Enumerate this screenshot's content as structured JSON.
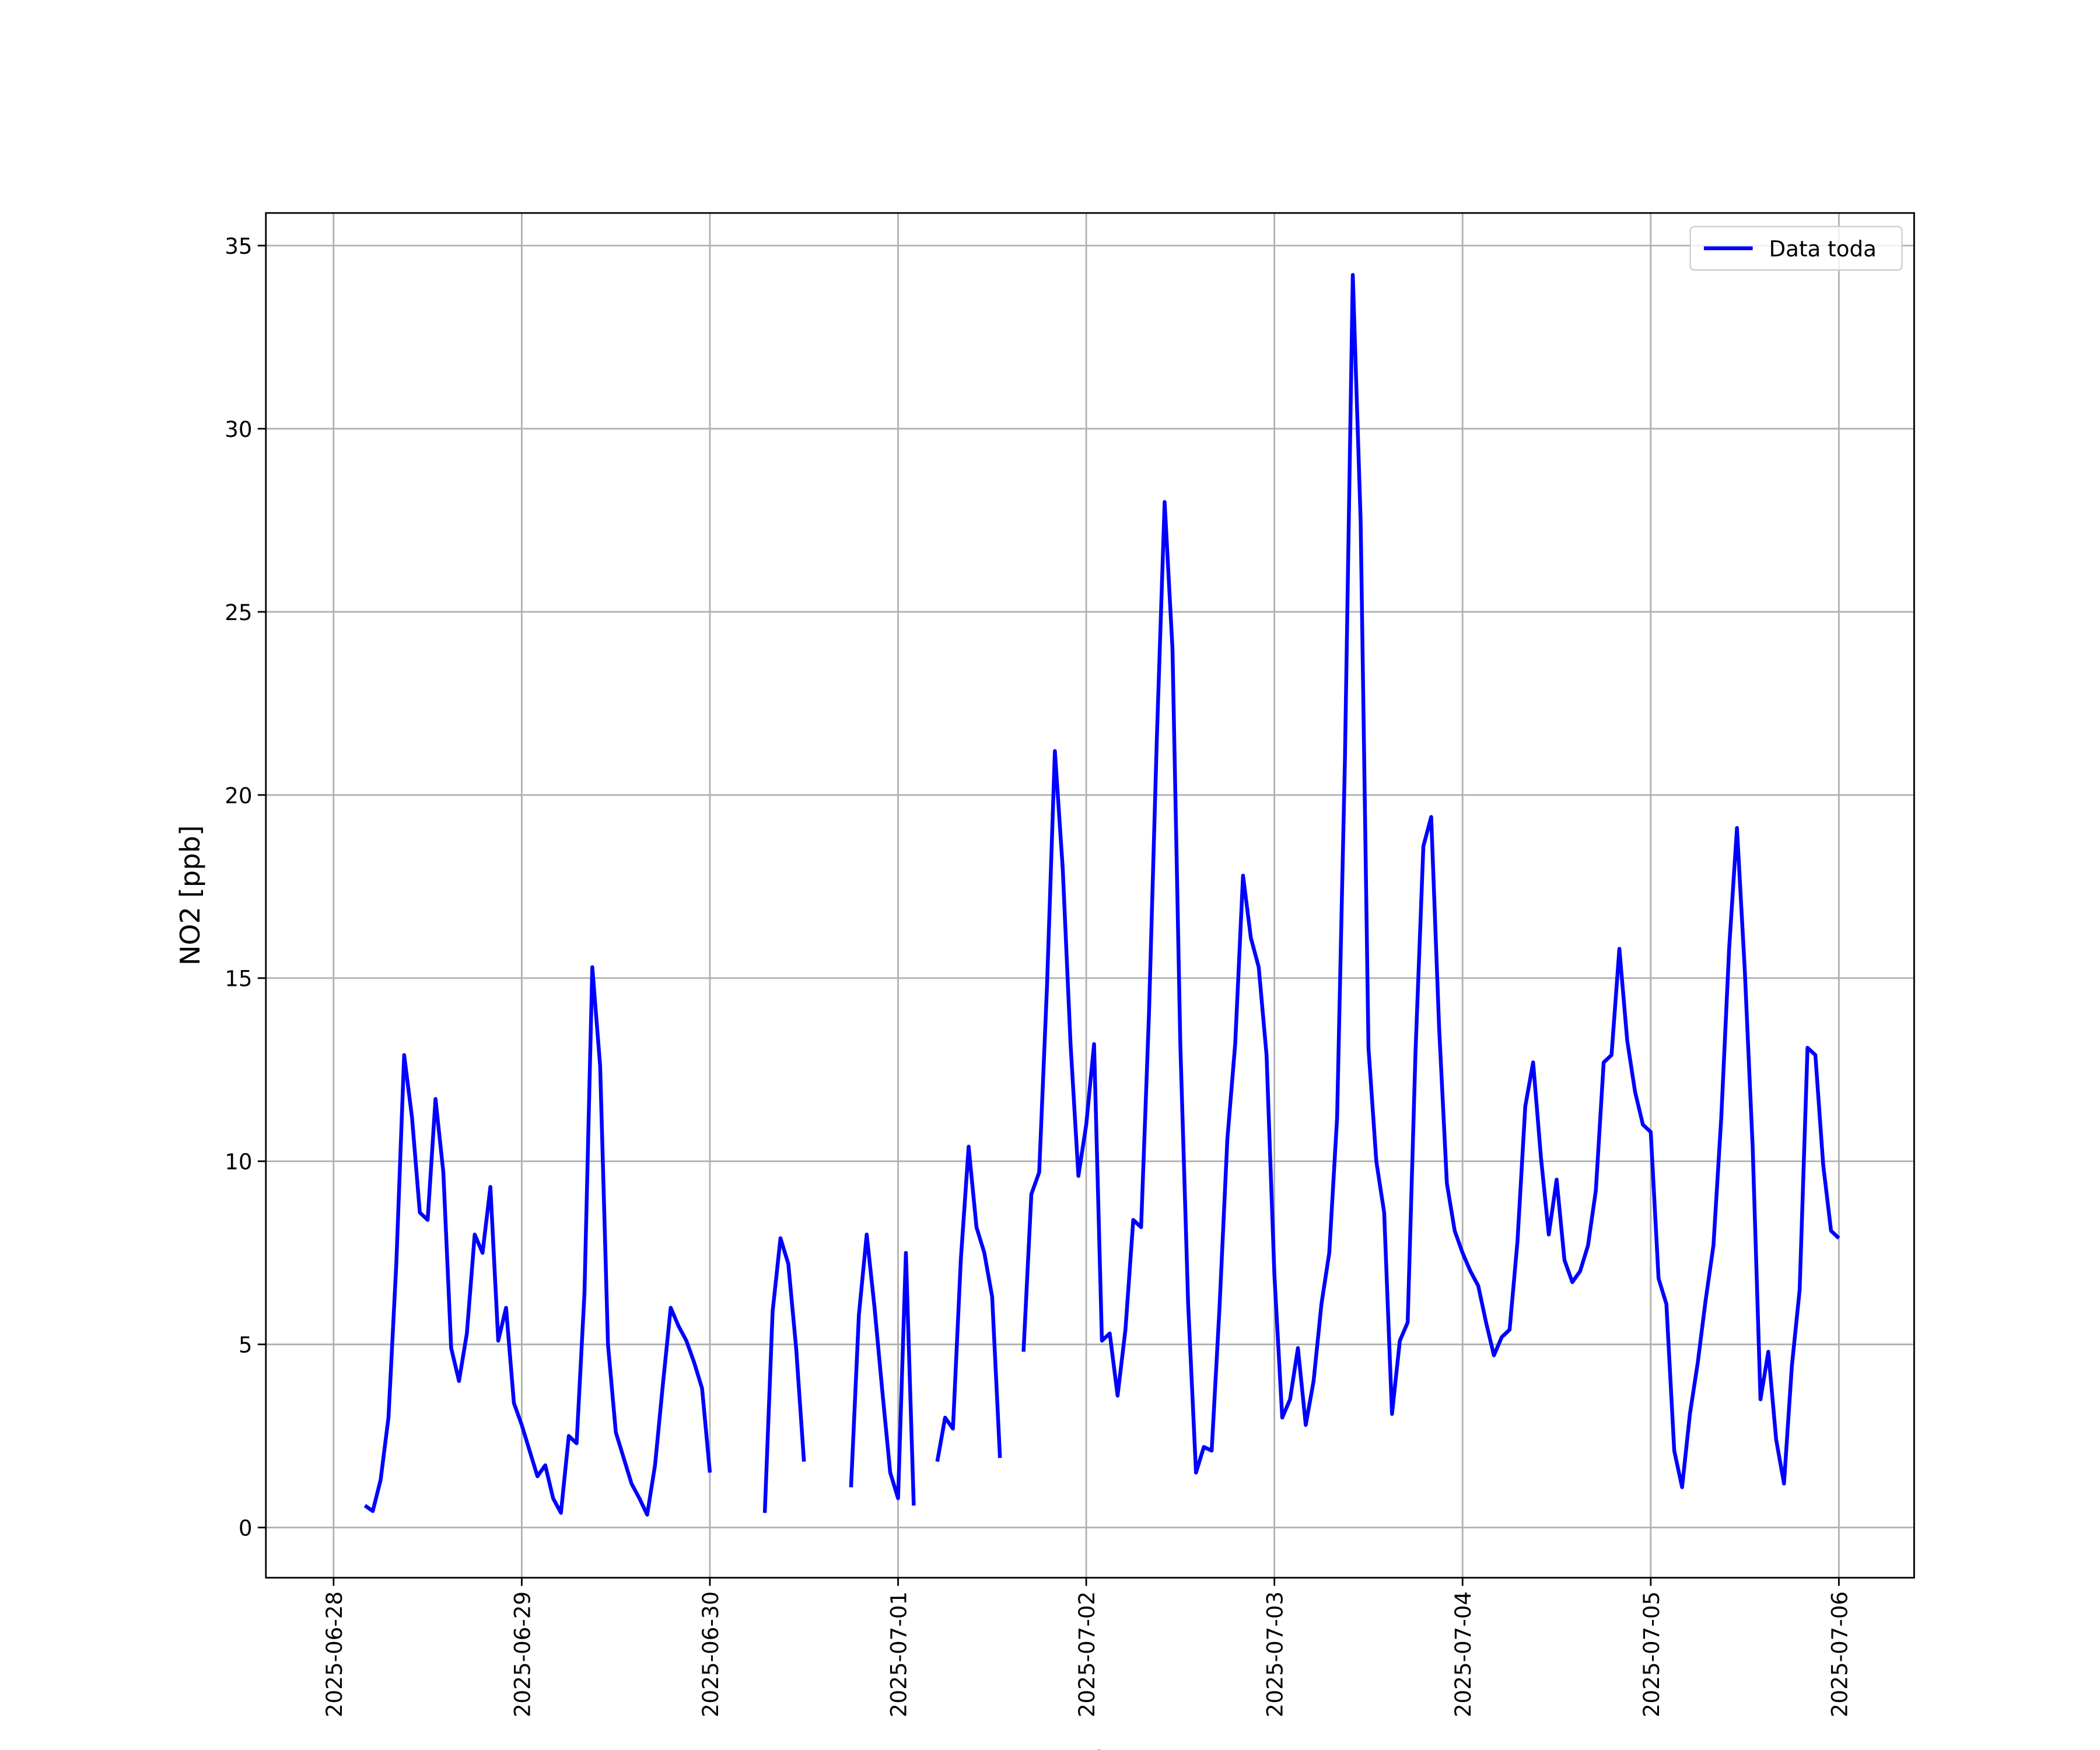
{
  "chart_data": {
    "type": "line",
    "xlabel": "Fecha",
    "ylabel": "NO2 [ppb]",
    "xlim": [
      "2025-06-27 15:22",
      "2025-07-06 09:36"
    ],
    "xticks": [
      "2025-06-28",
      "2025-06-29",
      "2025-06-30",
      "2025-07-01",
      "2025-07-02",
      "2025-07-03",
      "2025-07-04",
      "2025-07-05",
      "2025-07-06"
    ],
    "ylim": [
      -1.37,
      35.89
    ],
    "yticks": [
      0,
      5,
      10,
      15,
      20,
      25,
      30,
      35
    ],
    "grid": true,
    "legend": "upper right",
    "x": [
      "2025-06-28 04:00",
      "2025-06-28 05:00",
      "2025-06-28 06:00",
      "2025-06-28 07:00",
      "2025-06-28 08:00",
      "2025-06-28 09:00",
      "2025-06-28 10:00",
      "2025-06-28 11:00",
      "2025-06-28 12:00",
      "2025-06-28 13:00",
      "2025-06-28 14:00",
      "2025-06-28 15:00",
      "2025-06-28 16:00",
      "2025-06-28 17:00",
      "2025-06-28 18:00",
      "2025-06-28 19:00",
      "2025-06-28 20:00",
      "2025-06-28 21:00",
      "2025-06-28 22:00",
      "2025-06-28 23:00",
      "2025-06-29 00:00",
      "2025-06-29 01:00",
      "2025-06-29 02:00",
      "2025-06-29 03:00",
      "2025-06-29 04:00",
      "2025-06-29 05:00",
      "2025-06-29 06:00",
      "2025-06-29 07:00",
      "2025-06-29 08:00",
      "2025-06-29 09:00",
      "2025-06-29 10:00",
      "2025-06-29 11:00",
      "2025-06-29 12:00",
      "2025-06-29 13:00",
      "2025-06-29 14:00",
      "2025-06-29 15:00",
      "2025-06-29 16:00",
      "2025-06-29 17:00",
      "2025-06-29 18:00",
      "2025-06-29 19:00",
      "2025-06-29 20:00",
      "2025-06-29 21:00",
      "2025-06-29 22:00",
      "2025-06-29 23:00",
      "2025-06-30 00:00",
      "2025-06-30 01:00",
      "2025-06-30 02:00",
      "2025-06-30 03:00",
      "2025-06-30 04:00",
      "2025-06-30 05:00",
      "2025-06-30 06:00",
      "2025-06-30 07:00",
      "2025-06-30 08:00",
      "2025-06-30 09:00",
      "2025-06-30 10:00",
      "2025-06-30 11:00",
      "2025-06-30 12:00",
      "2025-06-30 13:00",
      "2025-06-30 14:00",
      "2025-06-30 15:00",
      "2025-06-30 16:00",
      "2025-06-30 17:00",
      "2025-06-30 18:00",
      "2025-06-30 19:00",
      "2025-06-30 20:00",
      "2025-06-30 21:00",
      "2025-06-30 22:00",
      "2025-06-30 23:00",
      "2025-07-01 00:00",
      "2025-07-01 01:00",
      "2025-07-01 02:00",
      "2025-07-01 03:00",
      "2025-07-01 04:00",
      "2025-07-01 05:00",
      "2025-07-01 06:00",
      "2025-07-01 07:00",
      "2025-07-01 08:00",
      "2025-07-01 09:00",
      "2025-07-01 10:00",
      "2025-07-01 11:00",
      "2025-07-01 12:00",
      "2025-07-01 13:00",
      "2025-07-01 14:00",
      "2025-07-01 15:00",
      "2025-07-01 16:00",
      "2025-07-01 17:00",
      "2025-07-01 18:00",
      "2025-07-01 19:00",
      "2025-07-01 20:00",
      "2025-07-01 21:00",
      "2025-07-01 22:00",
      "2025-07-01 23:00",
      "2025-07-02 00:00",
      "2025-07-02 01:00",
      "2025-07-02 02:00",
      "2025-07-02 03:00",
      "2025-07-02 04:00",
      "2025-07-02 05:00",
      "2025-07-02 06:00",
      "2025-07-02 07:00",
      "2025-07-02 08:00",
      "2025-07-02 09:00",
      "2025-07-02 10:00",
      "2025-07-02 11:00",
      "2025-07-02 12:00",
      "2025-07-02 13:00",
      "2025-07-02 14:00",
      "2025-07-02 15:00",
      "2025-07-02 16:00",
      "2025-07-02 17:00",
      "2025-07-02 18:00",
      "2025-07-02 19:00",
      "2025-07-02 20:00",
      "2025-07-02 21:00",
      "2025-07-02 22:00",
      "2025-07-02 23:00",
      "2025-07-03 00:00",
      "2025-07-03 01:00",
      "2025-07-03 02:00",
      "2025-07-03 03:00",
      "2025-07-03 04:00",
      "2025-07-03 05:00",
      "2025-07-03 06:00",
      "2025-07-03 07:00",
      "2025-07-03 08:00",
      "2025-07-03 09:00",
      "2025-07-03 10:00",
      "2025-07-03 11:00",
      "2025-07-03 12:00",
      "2025-07-03 13:00",
      "2025-07-03 14:00",
      "2025-07-03 15:00",
      "2025-07-03 16:00",
      "2025-07-03 17:00",
      "2025-07-03 18:00",
      "2025-07-03 19:00",
      "2025-07-03 20:00",
      "2025-07-03 21:00",
      "2025-07-03 22:00",
      "2025-07-03 23:00",
      "2025-07-04 00:00",
      "2025-07-04 01:00",
      "2025-07-04 02:00",
      "2025-07-04 03:00",
      "2025-07-04 04:00",
      "2025-07-04 05:00",
      "2025-07-04 06:00",
      "2025-07-04 07:00",
      "2025-07-04 08:00",
      "2025-07-04 09:00",
      "2025-07-04 10:00",
      "2025-07-04 11:00",
      "2025-07-04 12:00",
      "2025-07-04 13:00",
      "2025-07-04 14:00",
      "2025-07-04 15:00",
      "2025-07-04 16:00",
      "2025-07-04 17:00",
      "2025-07-04 18:00",
      "2025-07-04 19:00",
      "2025-07-04 20:00",
      "2025-07-04 21:00",
      "2025-07-04 22:00",
      "2025-07-04 23:00",
      "2025-07-05 00:00",
      "2025-07-05 01:00",
      "2025-07-05 02:00",
      "2025-07-05 03:00",
      "2025-07-05 04:00",
      "2025-07-05 05:00",
      "2025-07-05 06:00",
      "2025-07-05 07:00",
      "2025-07-05 08:00",
      "2025-07-05 09:00",
      "2025-07-05 10:00",
      "2025-07-05 11:00",
      "2025-07-05 12:00",
      "2025-07-05 13:00",
      "2025-07-05 14:00",
      "2025-07-05 15:00",
      "2025-07-05 16:00",
      "2025-07-05 17:00",
      "2025-07-05 18:00",
      "2025-07-05 19:00",
      "2025-07-05 20:00",
      "2025-07-05 21:00",
      "2025-07-05 22:00",
      "2025-07-05 23:00",
      "2025-07-06 00:00"
    ],
    "series": [
      {
        "name": "Data toda",
        "color": "#0000ff",
        "values": [
          0.6,
          0.45,
          1.3,
          3.0,
          7.2,
          12.9,
          11.2,
          8.6,
          8.4,
          11.7,
          9.7,
          4.9,
          4.0,
          5.3,
          8.0,
          7.5,
          9.3,
          5.1,
          6.0,
          3.4,
          2.8,
          2.1,
          1.4,
          1.7,
          0.8,
          0.4,
          2.5,
          2.3,
          6.4,
          15.3,
          12.6,
          5.0,
          2.6,
          1.9,
          1.2,
          0.8,
          0.35,
          1.7,
          3.9,
          6.0,
          5.5,
          5.1,
          4.5,
          3.8,
          1.5,
          null,
          null,
          null,
          null,
          null,
          null,
          0.4,
          5.9,
          7.9,
          7.2,
          4.9,
          1.8,
          null,
          null,
          null,
          null,
          null,
          1.1,
          5.8,
          8.0,
          6.0,
          3.7,
          1.5,
          0.8,
          7.5,
          0.6,
          null,
          null,
          1.8,
          3.0,
          2.7,
          7.3,
          10.4,
          8.2,
          7.5,
          6.3,
          1.9,
          null,
          null,
          4.8,
          9.1,
          9.7,
          14.8,
          21.2,
          18.0,
          13.2,
          9.6,
          11.0,
          13.2,
          5.1,
          5.3,
          3.6,
          5.4,
          8.4,
          8.2,
          14.0,
          21.5,
          28.0,
          24.0,
          13.2,
          6.1,
          1.5,
          2.2,
          2.1,
          6.0,
          10.6,
          13.2,
          17.8,
          16.1,
          15.3,
          12.9,
          6.9,
          3.0,
          3.5,
          4.9,
          2.8,
          4.0,
          6.1,
          7.5,
          11.2,
          21.0,
          34.2,
          27.5,
          13.1,
          10.0,
          8.6,
          3.1,
          5.1,
          5.6,
          13.0,
          18.6,
          19.4,
          13.7,
          9.4,
          8.1,
          7.5,
          7.0,
          6.6,
          5.6,
          4.7,
          5.2,
          5.4,
          7.8,
          11.5,
          12.7,
          10.1,
          8.0,
          9.5,
          7.3,
          6.7,
          7.0,
          7.7,
          9.2,
          12.7,
          12.9,
          15.8,
          13.3,
          11.9,
          11.0,
          10.8,
          6.8,
          6.1,
          2.1,
          1.1,
          3.1,
          4.5,
          6.2,
          7.7,
          11.2,
          15.8,
          19.1,
          15.2,
          10.4,
          3.5,
          4.8,
          2.4,
          1.2,
          4.4,
          6.5,
          13.1,
          12.9,
          9.9,
          8.1,
          7.9
        ]
      }
    ]
  }
}
